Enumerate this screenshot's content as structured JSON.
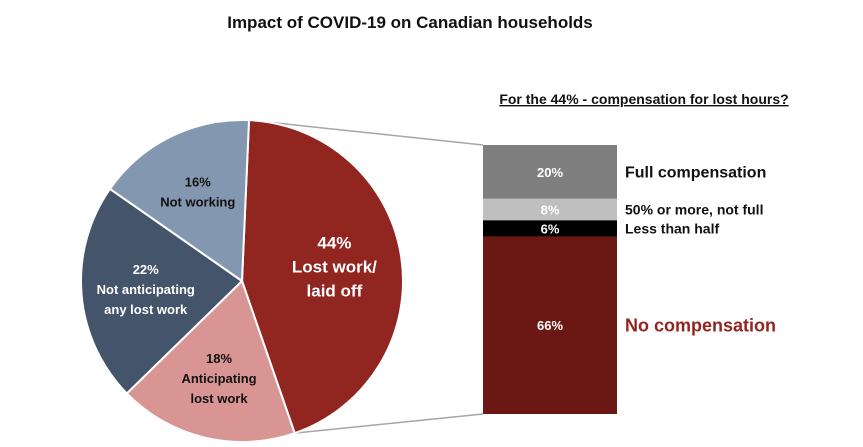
{
  "chart_data": [
    {
      "type": "pie",
      "title": "Impact of COVID-19 on Canadian households",
      "slices": [
        {
          "label_lines": [
            "Lost work/",
            "laid off"
          ],
          "value": 44,
          "value_label": "44%",
          "color": "#912520",
          "text_color": "#ffffff"
        },
        {
          "label_lines": [
            "Anticipating",
            "lost work"
          ],
          "value": 18,
          "value_label": "18%",
          "color": "#d99594",
          "text_color": "#111111"
        },
        {
          "label_lines": [
            "Not anticipating",
            "any lost work"
          ],
          "value": 22,
          "value_label": "22%",
          "color": "#44546a",
          "text_color": "#ffffff"
        },
        {
          "label_lines": [
            "Not working"
          ],
          "value": 16,
          "value_label": "16%",
          "color": "#8497b0",
          "text_color": "#111111"
        }
      ]
    },
    {
      "type": "bar",
      "stacked": true,
      "title": "For the 44% - compensation for lost hours?",
      "segments": [
        {
          "name": "Full compensation",
          "value": 20,
          "value_label": "20%",
          "color": "#7f7f7f",
          "label_color": "#ffffff",
          "legend_color": "#111111"
        },
        {
          "name": "50% or more, not full",
          "value": 8,
          "value_label": "8%",
          "color": "#bfbfbf",
          "label_color": "#ffffff",
          "legend_color": "#111111"
        },
        {
          "name": "Less than half",
          "value": 6,
          "value_label": "6%",
          "color": "#000000",
          "label_color": "#ffffff",
          "legend_color": "#111111"
        },
        {
          "name": "No compensation",
          "value": 66,
          "value_label": "66%",
          "color": "#6b1714",
          "label_color": "#ffffff",
          "legend_color": "#912520"
        }
      ]
    }
  ]
}
